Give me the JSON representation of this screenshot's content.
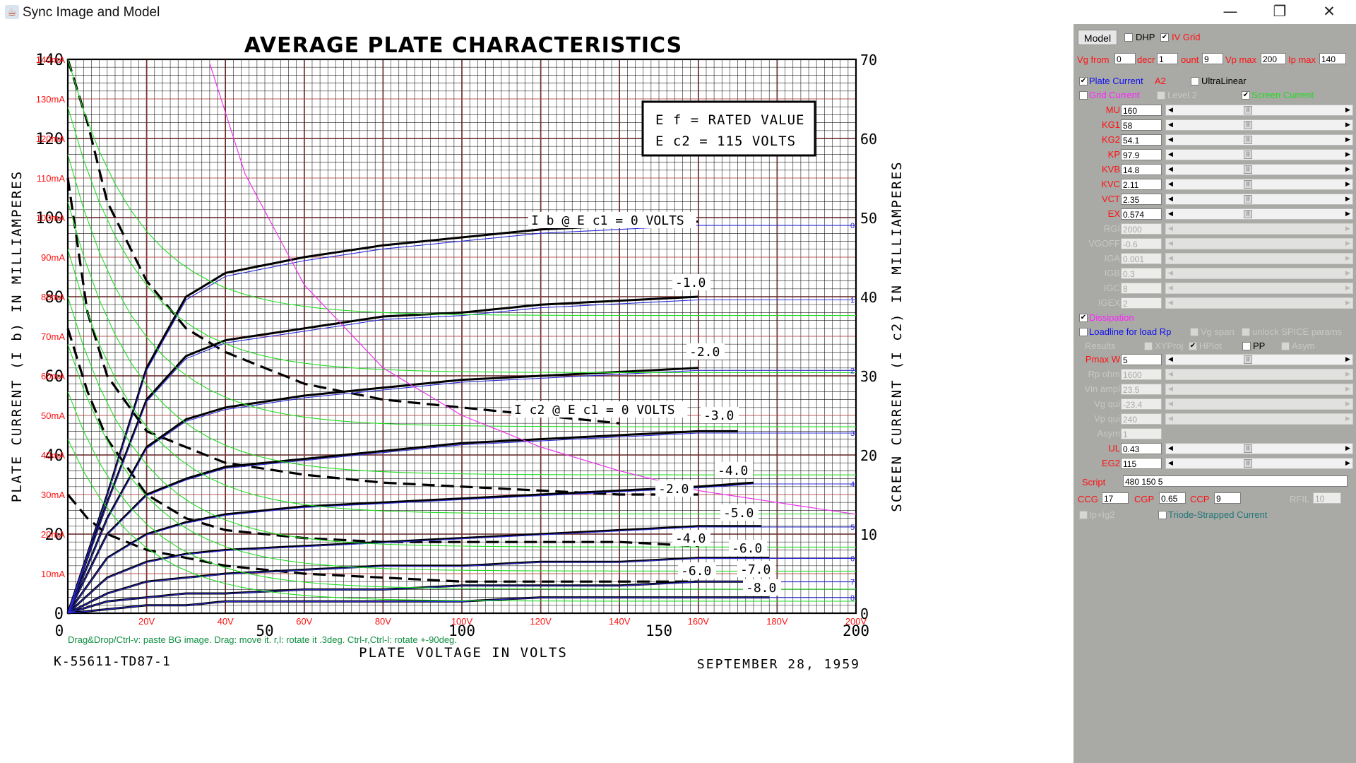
{
  "window": {
    "title": "Sync Image and Model",
    "minimize": "—",
    "maximize": "❐",
    "close": "✕"
  },
  "chart": {
    "title": "AVERAGE PLATE CHARACTERISTICS",
    "box_line1": "E f  =  RATED VALUE",
    "box_line2": "E c2  =  115 VOLTS",
    "left_axis_label": "PLATE CURRENT (I b) IN MILLIAMPERES",
    "right_axis_label": "SCREEN CURRENT (I c2) IN MILLIAMPERES",
    "x_axis_label": "PLATE VOLTAGE IN VOLTS",
    "doc_code": "K-55611-TD87-1",
    "date": "SEPTEMBER 28, 1959",
    "hint": "Drag&Drop/Ctrl-v: paste BG image. Drag: move it. r,l: rotate it .3deg. Ctrl-r,Ctrl-l: rotate +-90deg.",
    "curve_labels": [
      "I b @ E c1 = 0 VOLTS",
      "-1.0",
      "-2.0",
      "I c2 @ E c1 = 0 VOLTS",
      "-3.0",
      "-4.0",
      "-2.0",
      "-5.0",
      "-4.0",
      "-6.0",
      "-6.0",
      "-7.0",
      "-8.0"
    ],
    "left_ticks_printed": [
      "140",
      "120",
      "100",
      "80",
      "60",
      "40",
      "20",
      "0"
    ],
    "right_ticks_printed": [
      "70",
      "60",
      "50",
      "40",
      "30",
      "20",
      "10",
      "0"
    ],
    "bottom_ticks_printed": [
      "0",
      "50",
      "100",
      "150",
      "200"
    ],
    "model_y_labels": [
      "140mA",
      "130mA",
      "120mA",
      "110mA",
      "100mA",
      "90mA",
      "80mA",
      "70mA",
      "60mA",
      "50mA",
      "40mA",
      "30mA",
      "20mA",
      "10mA"
    ],
    "model_x_labels": [
      "20V",
      "40V",
      "60V",
      "80V",
      "100V",
      "120V",
      "140V",
      "160V",
      "180V",
      "200V"
    ],
    "grid_curve_indices": [
      "0",
      "1",
      "2",
      "3",
      "4",
      "5",
      "6",
      "7",
      "8"
    ]
  },
  "chart_data": {
    "type": "line",
    "title": "AVERAGE PLATE CHARACTERISTICS",
    "xlabel": "PLATE VOLTAGE IN VOLTS",
    "ylabel": "PLATE CURRENT (I b) IN MILLIAMPERES",
    "y2label": "SCREEN CURRENT (I c2) IN MILLIAMPERES",
    "xlim": [
      0,
      200
    ],
    "ylim": [
      0,
      140
    ],
    "y2lim": [
      0,
      70
    ],
    "grid": true,
    "plate_current_series": [
      {
        "name": "0",
        "x": [
          0,
          10,
          20,
          30,
          40,
          60,
          80,
          100,
          120,
          140,
          160
        ],
        "y": [
          0,
          30,
          62,
          80,
          86,
          90,
          93,
          95,
          97,
          98,
          99
        ]
      },
      {
        "name": "-1.0",
        "x": [
          0,
          10,
          20,
          30,
          40,
          60,
          80,
          100,
          120,
          140,
          160
        ],
        "y": [
          0,
          28,
          54,
          65,
          69,
          72,
          75,
          76,
          78,
          79,
          80
        ]
      },
      {
        "name": "-2.0",
        "x": [
          0,
          10,
          20,
          30,
          40,
          60,
          80,
          100,
          120,
          140,
          160
        ],
        "y": [
          0,
          24,
          42,
          49,
          52,
          55,
          57,
          59,
          60,
          61,
          62
        ]
      },
      {
        "name": "-3.0",
        "x": [
          0,
          10,
          20,
          30,
          40,
          60,
          80,
          100,
          120,
          140,
          160,
          170
        ],
        "y": [
          0,
          20,
          30,
          34,
          37,
          39,
          41,
          43,
          44,
          45,
          46,
          46
        ]
      },
      {
        "name": "-4.0",
        "x": [
          0,
          10,
          20,
          30,
          40,
          60,
          80,
          100,
          120,
          140,
          160,
          174
        ],
        "y": [
          0,
          14,
          20,
          23,
          25,
          27,
          28,
          29,
          30,
          31,
          32,
          33
        ]
      },
      {
        "name": "-5.0",
        "x": [
          0,
          10,
          20,
          30,
          40,
          60,
          80,
          100,
          120,
          140,
          160,
          176
        ],
        "y": [
          0,
          9,
          13,
          15,
          16,
          17,
          18,
          19,
          20,
          21,
          22,
          22
        ]
      },
      {
        "name": "-6.0",
        "x": [
          0,
          10,
          20,
          30,
          40,
          60,
          80,
          100,
          120,
          140,
          160,
          178
        ],
        "y": [
          0,
          5,
          8,
          9,
          10,
          11,
          12,
          12,
          13,
          13,
          14,
          14
        ]
      },
      {
        "name": "-7.0",
        "x": [
          0,
          10,
          20,
          30,
          40,
          60,
          80,
          100,
          120,
          140,
          160,
          178
        ],
        "y": [
          0,
          3,
          4,
          5,
          5,
          6,
          6,
          7,
          7,
          7,
          8,
          8
        ]
      },
      {
        "name": "-8.0",
        "x": [
          0,
          10,
          20,
          30,
          40,
          60,
          80,
          100,
          120,
          140,
          160,
          178
        ],
        "y": [
          0,
          1,
          2,
          2,
          3,
          3,
          3,
          3,
          4,
          4,
          4,
          4
        ]
      }
    ],
    "screen_current_series": [
      {
        "name": "0",
        "x": [
          0,
          5,
          10,
          20,
          30,
          40,
          60,
          80,
          100,
          120,
          140
        ],
        "y": [
          70,
          62,
          52,
          42,
          36,
          33,
          29,
          27,
          26,
          25,
          24
        ]
      },
      {
        "name": "-2.0",
        "x": [
          0,
          5,
          10,
          20,
          30,
          40,
          60,
          80,
          100,
          120,
          140,
          160
        ],
        "y": [
          55,
          38,
          30,
          23,
          21,
          19,
          17.5,
          16.5,
          16,
          15.5,
          15,
          15
        ]
      },
      {
        "name": "-4.0",
        "x": [
          0,
          5,
          10,
          20,
          30,
          40,
          60,
          80,
          100,
          120,
          140,
          160
        ],
        "y": [
          36,
          28,
          22,
          15,
          12,
          10.5,
          9.5,
          9,
          9,
          9,
          9,
          8.5
        ]
      },
      {
        "name": "-6.0",
        "x": [
          0,
          5,
          10,
          20,
          30,
          40,
          60,
          80,
          100,
          120,
          140,
          160
        ],
        "y": [
          15,
          12,
          10,
          8,
          7,
          6,
          5,
          4.5,
          4,
          4,
          4,
          4
        ]
      }
    ],
    "model_dissipation": {
      "x": [
        36,
        45,
        60,
        80,
        100,
        120,
        140,
        160,
        180,
        200
      ],
      "y": [
        139,
        111,
        83,
        62,
        50,
        42,
        36,
        31,
        28,
        25
      ]
    }
  },
  "panel": {
    "model_button": "Model",
    "dhp": {
      "label": "DHP",
      "checked": false
    },
    "iv_grid": {
      "label": "IV Grid",
      "checked": true
    },
    "vg_from_label": "Vg from",
    "vg_from": "0",
    "decr_label": "decr",
    "decr": "1",
    "count_label": "ount",
    "count": "9",
    "vp_max_label": "Vp max",
    "vp_max": "200",
    "ip_max_label": "Ip max",
    "ip_max": "140",
    "plate_current": {
      "label": "Plate Current",
      "checked": true
    },
    "a2_label": "A2",
    "ultralinear": {
      "label": "UltraLinear",
      "checked": false
    },
    "grid_current": {
      "label": "Grid Current",
      "checked": false
    },
    "level2": {
      "label": "Level 2",
      "checked": false
    },
    "screen_current": {
      "label": "Screen Current",
      "checked": true
    },
    "params": [
      {
        "label": "MU",
        "value": "160",
        "enabled": true
      },
      {
        "label": "KG1",
        "value": "58",
        "enabled": true
      },
      {
        "label": "KG2",
        "value": "54.1",
        "enabled": true
      },
      {
        "label": "KP",
        "value": "97.9",
        "enabled": true
      },
      {
        "label": "KVB",
        "value": "14.8",
        "enabled": true
      },
      {
        "label": "KVC",
        "value": "2.11",
        "enabled": true
      },
      {
        "label": "VCT",
        "value": "2.35",
        "enabled": true
      },
      {
        "label": "EX",
        "value": "0.574",
        "enabled": true
      },
      {
        "label": "RGI",
        "value": "2000",
        "enabled": false
      },
      {
        "label": "VGOFF",
        "value": "-0.6",
        "enabled": false
      },
      {
        "label": "IGA",
        "value": "0.001",
        "enabled": false
      },
      {
        "label": "IGB",
        "value": "0.3",
        "enabled": false
      },
      {
        "label": "IGC",
        "value": "8",
        "enabled": false
      },
      {
        "label": "IGEX",
        "value": "2",
        "enabled": false
      }
    ],
    "dissipation": {
      "label": "Dissipation",
      "checked": true
    },
    "loadline": {
      "label": "Loadline for load Rp",
      "checked": false
    },
    "vg_span": {
      "label": "Vg span",
      "checked": false
    },
    "unlock_spice": {
      "label": "unlock SPICE params",
      "checked": false
    },
    "results_label": "Results",
    "xyproj": {
      "label": "XYProj",
      "checked": false
    },
    "hplot": {
      "label": "HPlot",
      "checked": true
    },
    "pp": {
      "label": "PP",
      "checked": false
    },
    "asym": {
      "label": "Asym",
      "checked": false
    },
    "params2": [
      {
        "label": "Pmax W",
        "value": "5",
        "enabled": true,
        "slider": true
      },
      {
        "label": "Rp ohm",
        "value": "1600",
        "enabled": false,
        "slider": true
      },
      {
        "label": "Vin ampl",
        "value": "23.5",
        "enabled": false,
        "slider": true
      },
      {
        "label": "Vg qui",
        "value": "-23.4",
        "enabled": false,
        "slider": true
      },
      {
        "label": "Vp qui",
        "value": "240",
        "enabled": false,
        "slider": true
      },
      {
        "label": "Asym",
        "value": "1",
        "enabled": false,
        "slider": false
      },
      {
        "label": "UL",
        "value": "0.43",
        "enabled": true,
        "slider": true
      },
      {
        "label": "EG2",
        "value": "115",
        "enabled": true,
        "slider": true
      }
    ],
    "script_label": "Script",
    "script_value": "480 150 5",
    "ccg_label": "CCG",
    "ccg": "17",
    "cgp_label": "CGP",
    "cgp": "0.65",
    "ccp_label": "CCP",
    "ccp": "9",
    "rfil_label": "RFIL",
    "rfil": "10",
    "ip_ig2": {
      "label": "Ip+Ig2",
      "checked": false
    },
    "triode_strapped": {
      "label": "Triode-Strapped Current",
      "checked": false
    }
  },
  "colors": {
    "panel_bg": "#a9a9a6",
    "label_red": "#ff1111",
    "model_blue": "#2b2bd6",
    "model_green": "#22dd22",
    "dissipation_magenta": "#ee33ee"
  }
}
